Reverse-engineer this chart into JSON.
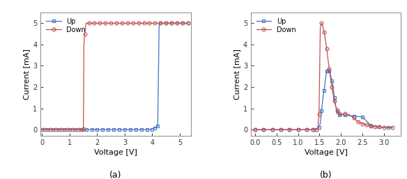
{
  "panel_a": {
    "up_x": [
      0.0,
      0.1,
      0.2,
      0.3,
      0.4,
      0.5,
      0.6,
      0.7,
      0.8,
      0.9,
      1.0,
      1.1,
      1.2,
      1.3,
      1.4,
      1.5,
      1.6,
      1.7,
      1.8,
      1.9,
      2.0,
      2.1,
      2.2,
      2.3,
      2.4,
      2.5,
      2.6,
      2.7,
      2.8,
      2.9,
      3.0,
      3.1,
      3.2,
      3.3,
      3.4,
      3.5,
      3.6,
      3.7,
      3.8,
      3.9,
      4.0,
      4.05,
      4.1,
      4.15,
      4.2,
      4.25,
      4.3,
      4.4,
      4.5,
      4.6,
      4.7,
      4.8,
      4.9,
      5.0,
      5.1,
      5.2,
      5.3
    ],
    "up_y": [
      0.0,
      0.0,
      0.0,
      0.0,
      0.0,
      0.0,
      0.0,
      0.0,
      0.0,
      0.0,
      0.0,
      0.0,
      0.0,
      0.0,
      0.0,
      0.0,
      0.0,
      0.0,
      0.0,
      0.0,
      0.0,
      0.0,
      0.0,
      0.0,
      0.0,
      0.0,
      0.0,
      0.0,
      0.0,
      0.0,
      0.0,
      0.0,
      0.0,
      0.0,
      0.0,
      0.0,
      0.0,
      0.0,
      0.0,
      0.0,
      0.02,
      0.05,
      0.08,
      0.12,
      0.16,
      4.95,
      5.0,
      5.0,
      5.0,
      5.0,
      5.0,
      5.0,
      5.0,
      5.0,
      5.0,
      5.0,
      5.0
    ],
    "down_x": [
      5.3,
      5.2,
      5.1,
      5.0,
      4.9,
      4.8,
      4.7,
      4.6,
      4.5,
      4.4,
      4.3,
      4.2,
      4.1,
      4.0,
      3.9,
      3.8,
      3.7,
      3.6,
      3.5,
      3.4,
      3.3,
      3.2,
      3.1,
      3.0,
      2.9,
      2.8,
      2.7,
      2.6,
      2.5,
      2.4,
      2.3,
      2.2,
      2.1,
      2.0,
      1.9,
      1.8,
      1.7,
      1.6,
      1.55,
      1.52,
      1.5,
      1.48,
      1.45,
      1.4,
      1.3,
      1.2,
      1.1,
      1.0,
      0.9,
      0.8,
      0.7,
      0.6,
      0.5,
      0.4,
      0.3,
      0.2,
      0.1,
      0.0
    ],
    "down_y": [
      5.0,
      5.0,
      5.0,
      5.0,
      5.0,
      5.0,
      5.0,
      5.0,
      5.0,
      5.0,
      5.0,
      5.0,
      5.0,
      5.0,
      5.0,
      5.0,
      5.0,
      5.0,
      5.0,
      5.0,
      5.0,
      5.0,
      5.0,
      5.0,
      5.0,
      5.0,
      5.0,
      5.0,
      5.0,
      5.0,
      5.0,
      5.0,
      5.0,
      5.0,
      5.0,
      5.0,
      5.0,
      5.0,
      4.5,
      4.0,
      0.04,
      0.02,
      0.01,
      0.0,
      0.0,
      0.0,
      0.0,
      0.0,
      0.0,
      0.0,
      0.0,
      0.0,
      0.0,
      0.0,
      0.0,
      0.0,
      0.0,
      0.0
    ],
    "xlabel": "Voltage [V]",
    "ylabel": "Current [mA]",
    "xlim": [
      -0.05,
      5.4
    ],
    "ylim": [
      -0.3,
      5.5
    ],
    "xticks": [
      0,
      1,
      2,
      3,
      4,
      5
    ],
    "yticks": [
      0,
      1,
      2,
      3,
      4,
      5
    ],
    "label": "(a)"
  },
  "panel_b": {
    "up_x": [
      0.0,
      0.1,
      0.2,
      0.3,
      0.4,
      0.5,
      0.6,
      0.7,
      0.8,
      0.9,
      1.0,
      1.1,
      1.2,
      1.3,
      1.35,
      1.4,
      1.43,
      1.46,
      1.49,
      1.52,
      1.55,
      1.58,
      1.61,
      1.64,
      1.67,
      1.7,
      1.73,
      1.76,
      1.79,
      1.82,
      1.85,
      1.88,
      1.91,
      1.94,
      1.97,
      2.0,
      2.1,
      2.2,
      2.3,
      2.4,
      2.5,
      2.6,
      2.7,
      2.8,
      2.9,
      3.0,
      3.1,
      3.2
    ],
    "up_y": [
      0.0,
      0.0,
      0.0,
      0.0,
      0.0,
      0.0,
      0.0,
      0.0,
      0.0,
      0.0,
      0.0,
      0.0,
      0.0,
      0.0,
      0.0,
      0.0,
      0.02,
      0.05,
      0.1,
      0.3,
      0.9,
      1.45,
      1.85,
      2.35,
      2.75,
      2.85,
      2.75,
      2.55,
      2.3,
      2.0,
      1.5,
      1.1,
      0.85,
      0.75,
      0.7,
      0.7,
      0.68,
      0.65,
      0.63,
      0.62,
      0.6,
      0.4,
      0.2,
      0.14,
      0.12,
      0.11,
      0.1,
      0.1
    ],
    "down_x": [
      3.2,
      3.1,
      3.0,
      2.95,
      2.9,
      2.85,
      2.8,
      2.75,
      2.7,
      2.65,
      2.6,
      2.55,
      2.5,
      2.45,
      2.4,
      2.35,
      2.3,
      2.2,
      2.1,
      2.0,
      1.97,
      1.94,
      1.91,
      1.88,
      1.85,
      1.82,
      1.79,
      1.76,
      1.73,
      1.7,
      1.67,
      1.64,
      1.61,
      1.58,
      1.55,
      1.52,
      1.49,
      1.46,
      1.43,
      1.4,
      1.35,
      1.3,
      1.2,
      1.1,
      1.0,
      0.9,
      0.8,
      0.7,
      0.6,
      0.5,
      0.4,
      0.3,
      0.2,
      0.1,
      0.0
    ],
    "down_y": [
      0.1,
      0.1,
      0.11,
      0.12,
      0.13,
      0.14,
      0.15,
      0.16,
      0.18,
      0.2,
      0.22,
      0.25,
      0.28,
      0.32,
      0.38,
      0.45,
      0.55,
      0.7,
      0.75,
      0.72,
      0.75,
      0.82,
      0.92,
      1.1,
      1.35,
      1.65,
      2.0,
      2.4,
      2.85,
      3.3,
      3.8,
      4.2,
      4.6,
      4.85,
      5.0,
      4.75,
      0.72,
      0.05,
      0.02,
      0.01,
      0.0,
      0.0,
      0.0,
      0.0,
      0.0,
      0.0,
      0.0,
      0.0,
      0.0,
      0.0,
      0.0,
      0.0,
      0.0,
      0.0,
      0.0
    ],
    "xlabel": "Voltage [V]",
    "ylabel": "Current [mA]",
    "xlim": [
      -0.1,
      3.4
    ],
    "ylim": [
      -0.3,
      5.5
    ],
    "xticks": [
      0.0,
      0.5,
      1.0,
      1.5,
      2.0,
      2.5,
      3.0
    ],
    "yticks": [
      0,
      1,
      2,
      3,
      4,
      5
    ],
    "label": "(b)"
  },
  "up_color": "#4472C4",
  "down_color": "#C0504D",
  "marker_size": 3.5,
  "line_width": 0.9,
  "bg_color": "#ffffff",
  "spine_color": "#888888",
  "tick_color": "#444444"
}
